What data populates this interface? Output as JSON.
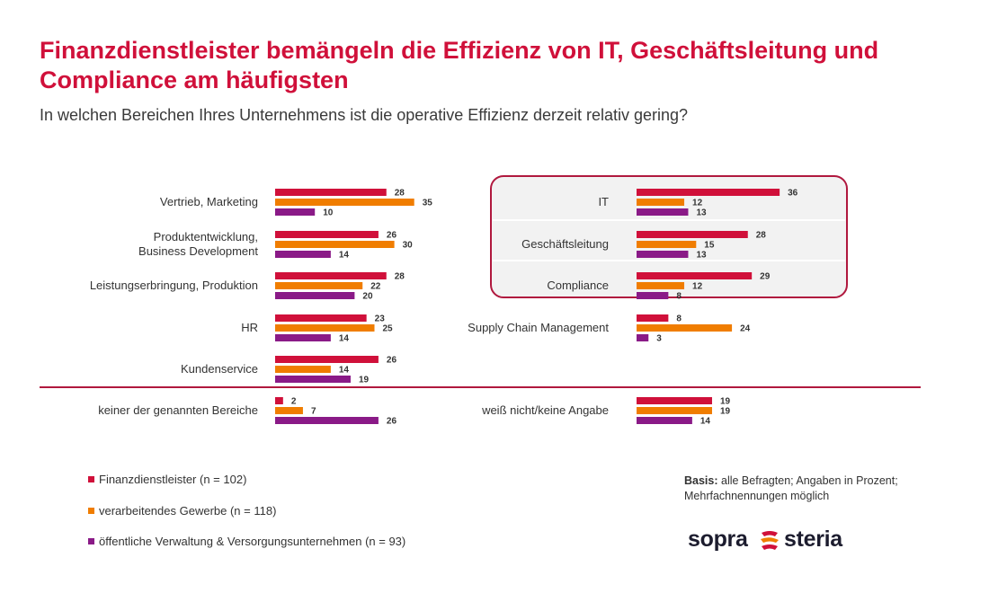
{
  "header": {
    "title": "Finanzdienstleister bemängeln die Effizienz von IT, Geschäftsleitung und Compliance am häufigsten",
    "subtitle": "In welchen Bereichen Ihres Unternehmens ist die operative Effizienz derzeit relativ gering?"
  },
  "colors": {
    "finanz": "#d0103a",
    "gewerbe": "#f07d00",
    "verwaltung": "#8a1a87",
    "highlight_border": "#b0183e",
    "highlight_bg": "#f2f2f2",
    "separator": "#b0183e"
  },
  "chart_data": {
    "type": "bar",
    "orientation": "horizontal",
    "title": "",
    "xlabel": "",
    "ylabel": "",
    "series": [
      {
        "key": "finanz",
        "name": "Finanzdienstleister (n = 102)"
      },
      {
        "key": "gewerbe",
        "name": "verarbeitendes Gewerbe (n = 118)"
      },
      {
        "key": "verwaltung",
        "name": "öffentliche Verwaltung & Versorgungsunternehmen (n = 93)"
      }
    ],
    "panels": [
      {
        "categories": [
          {
            "label": [
              "Vertrieb, Marketing"
            ],
            "values": [
              28,
              35,
              10
            ]
          },
          {
            "label": [
              "Produktentwicklung,",
              "Business Development"
            ],
            "values": [
              26,
              30,
              14
            ]
          },
          {
            "label": [
              "Leistungserbringung, Produktion"
            ],
            "values": [
              28,
              22,
              20
            ]
          },
          {
            "label": [
              "HR"
            ],
            "values": [
              23,
              25,
              14
            ]
          },
          {
            "label": [
              "Kundenservice"
            ],
            "values": [
              26,
              14,
              19
            ]
          },
          {
            "label": [
              "keiner der genannten Bereiche"
            ],
            "values": [
              2,
              7,
              26
            ]
          }
        ]
      },
      {
        "categories": [
          {
            "label": [
              "IT"
            ],
            "values": [
              36,
              12,
              13
            ],
            "highlighted": true
          },
          {
            "label": [
              "Geschäftsleitung"
            ],
            "values": [
              28,
              15,
              13
            ],
            "highlighted": true
          },
          {
            "label": [
              "Compliance"
            ],
            "values": [
              29,
              12,
              8
            ],
            "highlighted": true
          },
          {
            "label": [
              "Supply Chain Management"
            ],
            "values": [
              8,
              24,
              3
            ]
          },
          {
            "label": [
              "weiß nicht/keine Angabe"
            ],
            "values": [
              19,
              19,
              14
            ]
          }
        ]
      }
    ],
    "legend_position": "bottom-left",
    "grid": false
  },
  "legend": {
    "items": [
      "Finanzdienstleister (n = 102)",
      "verarbeitendes Gewerbe (n = 118)",
      "öffentliche Verwaltung & Versorgungsunternehmen (n = 93)"
    ]
  },
  "basis": {
    "bold": "Basis:",
    "text": " alle Befragten; Angaben in Prozent; Mehrfachnennungen möglich"
  },
  "logo": {
    "left_word": "sopra",
    "right_word": "steria"
  }
}
